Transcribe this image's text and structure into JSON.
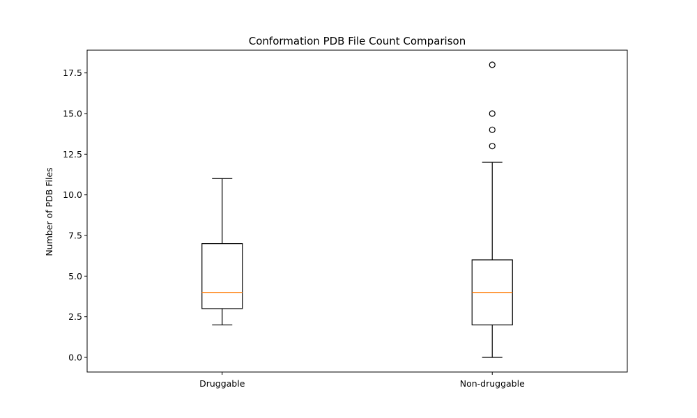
{
  "chart_data": {
    "type": "box",
    "title": "Conformation PDB File Count Comparison",
    "xlabel": "",
    "ylabel": "Number of PDB Files",
    "ylim": [
      -0.9,
      18.9
    ],
    "yticks": [
      0.0,
      2.5,
      5.0,
      7.5,
      10.0,
      12.5,
      15.0,
      17.5
    ],
    "ytick_labels": [
      "0.0",
      "2.5",
      "5.0",
      "7.5",
      "10.0",
      "12.5",
      "15.0",
      "17.5"
    ],
    "categories": [
      "Druggable",
      "Non-druggable"
    ],
    "boxes": [
      {
        "category": "Druggable",
        "whisker_low": 2,
        "q1": 3,
        "median": 4,
        "q3": 7,
        "whisker_high": 11,
        "outliers": []
      },
      {
        "category": "Non-druggable",
        "whisker_low": 0,
        "q1": 2,
        "median": 4,
        "q3": 6,
        "whisker_high": 12,
        "outliers": [
          13,
          14,
          15,
          18
        ]
      }
    ],
    "grid": false,
    "colors": {
      "box": "#000000",
      "median": "#ff7f0e",
      "outlier": "#000000"
    }
  }
}
